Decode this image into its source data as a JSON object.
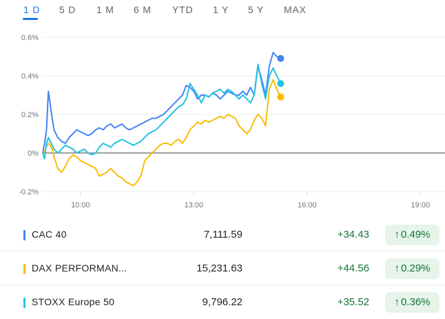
{
  "tabs": [
    {
      "label": "1 D",
      "active": true
    },
    {
      "label": "5 D",
      "active": false
    },
    {
      "label": "1 M",
      "active": false
    },
    {
      "label": "6 M",
      "active": false
    },
    {
      "label": "YTD",
      "active": false
    },
    {
      "label": "1 Y",
      "active": false
    },
    {
      "label": "5 Y",
      "active": false
    },
    {
      "label": "MAX",
      "active": false
    }
  ],
  "chart_data": {
    "type": "line",
    "y_ticks": [
      "0.6%",
      "0.4%",
      "0.2%",
      "0%",
      "-0.2%"
    ],
    "ylim": [
      -0.2,
      0.6
    ],
    "x_ticks": [
      "10:00",
      "13:00",
      "16:00",
      "19:00"
    ],
    "x_tick_hours": [
      10,
      13,
      16,
      19
    ],
    "xlim": [
      9,
      19.25
    ],
    "grid": true,
    "legend": "none",
    "series": [
      {
        "name": "CAC 40",
        "color": "#4285f4",
        "x": [
          9.0,
          9.05,
          9.1,
          9.15,
          9.2,
          9.25,
          9.3,
          9.4,
          9.5,
          9.6,
          9.7,
          9.8,
          9.9,
          10.0,
          10.1,
          10.2,
          10.3,
          10.4,
          10.5,
          10.6,
          10.7,
          10.8,
          10.9,
          11.0,
          11.1,
          11.2,
          11.3,
          11.4,
          11.5,
          11.6,
          11.7,
          11.8,
          11.9,
          12.0,
          12.1,
          12.2,
          12.3,
          12.4,
          12.5,
          12.6,
          12.7,
          12.8,
          12.9,
          13.0,
          13.1,
          13.2,
          13.3,
          13.4,
          13.5,
          13.6,
          13.7,
          13.8,
          13.9,
          14.0,
          14.1,
          14.2,
          14.3,
          14.4,
          14.5,
          14.6,
          14.7,
          14.8,
          14.9,
          15.0,
          15.1,
          15.2,
          15.3
        ],
        "y": [
          0.0,
          0.05,
          0.12,
          0.32,
          0.25,
          0.18,
          0.12,
          0.08,
          0.06,
          0.05,
          0.08,
          0.1,
          0.12,
          0.11,
          0.1,
          0.09,
          0.1,
          0.12,
          0.13,
          0.12,
          0.14,
          0.15,
          0.13,
          0.14,
          0.15,
          0.13,
          0.12,
          0.13,
          0.14,
          0.15,
          0.16,
          0.17,
          0.18,
          0.18,
          0.19,
          0.2,
          0.22,
          0.24,
          0.26,
          0.28,
          0.3,
          0.35,
          0.34,
          0.32,
          0.28,
          0.3,
          0.3,
          0.29,
          0.31,
          0.3,
          0.28,
          0.3,
          0.32,
          0.31,
          0.3,
          0.3,
          0.32,
          0.3,
          0.34,
          0.3,
          0.45,
          0.38,
          0.3,
          0.45,
          0.52,
          0.5,
          0.49
        ]
      },
      {
        "name": "DAX PERFORMANCE-INDEX",
        "color": "#fbbc04",
        "x": [
          9.0,
          9.05,
          9.1,
          9.15,
          9.2,
          9.25,
          9.3,
          9.4,
          9.5,
          9.6,
          9.7,
          9.8,
          9.9,
          10.0,
          10.1,
          10.2,
          10.3,
          10.4,
          10.5,
          10.6,
          10.7,
          10.8,
          10.9,
          11.0,
          11.1,
          11.2,
          11.3,
          11.4,
          11.5,
          11.6,
          11.7,
          11.8,
          11.9,
          12.0,
          12.1,
          12.2,
          12.3,
          12.4,
          12.5,
          12.6,
          12.7,
          12.8,
          12.9,
          13.0,
          13.1,
          13.2,
          13.3,
          13.4,
          13.5,
          13.6,
          13.7,
          13.8,
          13.9,
          14.0,
          14.1,
          14.2,
          14.3,
          14.4,
          14.5,
          14.6,
          14.7,
          14.8,
          14.9,
          15.0,
          15.1,
          15.2,
          15.3
        ],
        "y": [
          0.0,
          0.01,
          0.03,
          0.05,
          0.04,
          0.02,
          -0.02,
          -0.08,
          -0.1,
          -0.07,
          -0.03,
          -0.01,
          -0.02,
          -0.04,
          -0.05,
          -0.06,
          -0.07,
          -0.08,
          -0.12,
          -0.11,
          -0.1,
          -0.08,
          -0.1,
          -0.12,
          -0.13,
          -0.15,
          -0.16,
          -0.17,
          -0.15,
          -0.12,
          -0.04,
          -0.02,
          0.0,
          0.02,
          0.04,
          0.05,
          0.05,
          0.04,
          0.06,
          0.07,
          0.05,
          0.08,
          0.12,
          0.14,
          0.16,
          0.15,
          0.17,
          0.16,
          0.17,
          0.18,
          0.19,
          0.18,
          0.2,
          0.19,
          0.18,
          0.14,
          0.12,
          0.1,
          0.12,
          0.17,
          0.2,
          0.18,
          0.14,
          0.33,
          0.38,
          0.33,
          0.29
        ]
      },
      {
        "name": "STOXX Europe 50",
        "color": "#24c1e0",
        "x": [
          9.0,
          9.05,
          9.1,
          9.15,
          9.2,
          9.25,
          9.3,
          9.4,
          9.5,
          9.6,
          9.7,
          9.8,
          9.9,
          10.0,
          10.1,
          10.2,
          10.3,
          10.4,
          10.5,
          10.6,
          10.7,
          10.8,
          10.9,
          11.0,
          11.1,
          11.2,
          11.3,
          11.4,
          11.5,
          11.6,
          11.7,
          11.8,
          11.9,
          12.0,
          12.1,
          12.2,
          12.3,
          12.4,
          12.5,
          12.6,
          12.7,
          12.8,
          12.9,
          13.0,
          13.1,
          13.2,
          13.3,
          13.4,
          13.5,
          13.6,
          13.7,
          13.8,
          13.9,
          14.0,
          14.1,
          14.2,
          14.3,
          14.4,
          14.5,
          14.6,
          14.7,
          14.8,
          14.9,
          15.0,
          15.1,
          15.2,
          15.3
        ],
        "y": [
          0.0,
          -0.03,
          0.05,
          0.08,
          0.06,
          0.04,
          0.02,
          0.0,
          0.02,
          0.04,
          0.03,
          0.02,
          0.0,
          0.01,
          0.02,
          0.0,
          -0.01,
          0.0,
          0.03,
          0.05,
          0.04,
          0.03,
          0.05,
          0.06,
          0.07,
          0.06,
          0.05,
          0.04,
          0.05,
          0.06,
          0.08,
          0.1,
          0.11,
          0.12,
          0.14,
          0.16,
          0.18,
          0.2,
          0.22,
          0.24,
          0.25,
          0.28,
          0.36,
          0.33,
          0.3,
          0.26,
          0.3,
          0.29,
          0.31,
          0.32,
          0.33,
          0.31,
          0.33,
          0.32,
          0.3,
          0.28,
          0.3,
          0.28,
          0.26,
          0.3,
          0.46,
          0.36,
          0.28,
          0.4,
          0.44,
          0.4,
          0.36
        ]
      }
    ]
  },
  "quotes": [
    {
      "name": "CAC 40",
      "price": "7,111.59",
      "change": "+34.43",
      "arrow": "↑",
      "pct": "0.49%",
      "color": "#4285f4"
    },
    {
      "name": "DAX PERFORMAN...",
      "price": "15,231.63",
      "change": "+44.56",
      "arrow": "↑",
      "pct": "0.29%",
      "color": "#fbbc04"
    },
    {
      "name": "STOXX Europe 50",
      "price": "9,796.22",
      "change": "+35.52",
      "arrow": "↑",
      "pct": "0.36%",
      "color": "#24c1e0"
    }
  ]
}
